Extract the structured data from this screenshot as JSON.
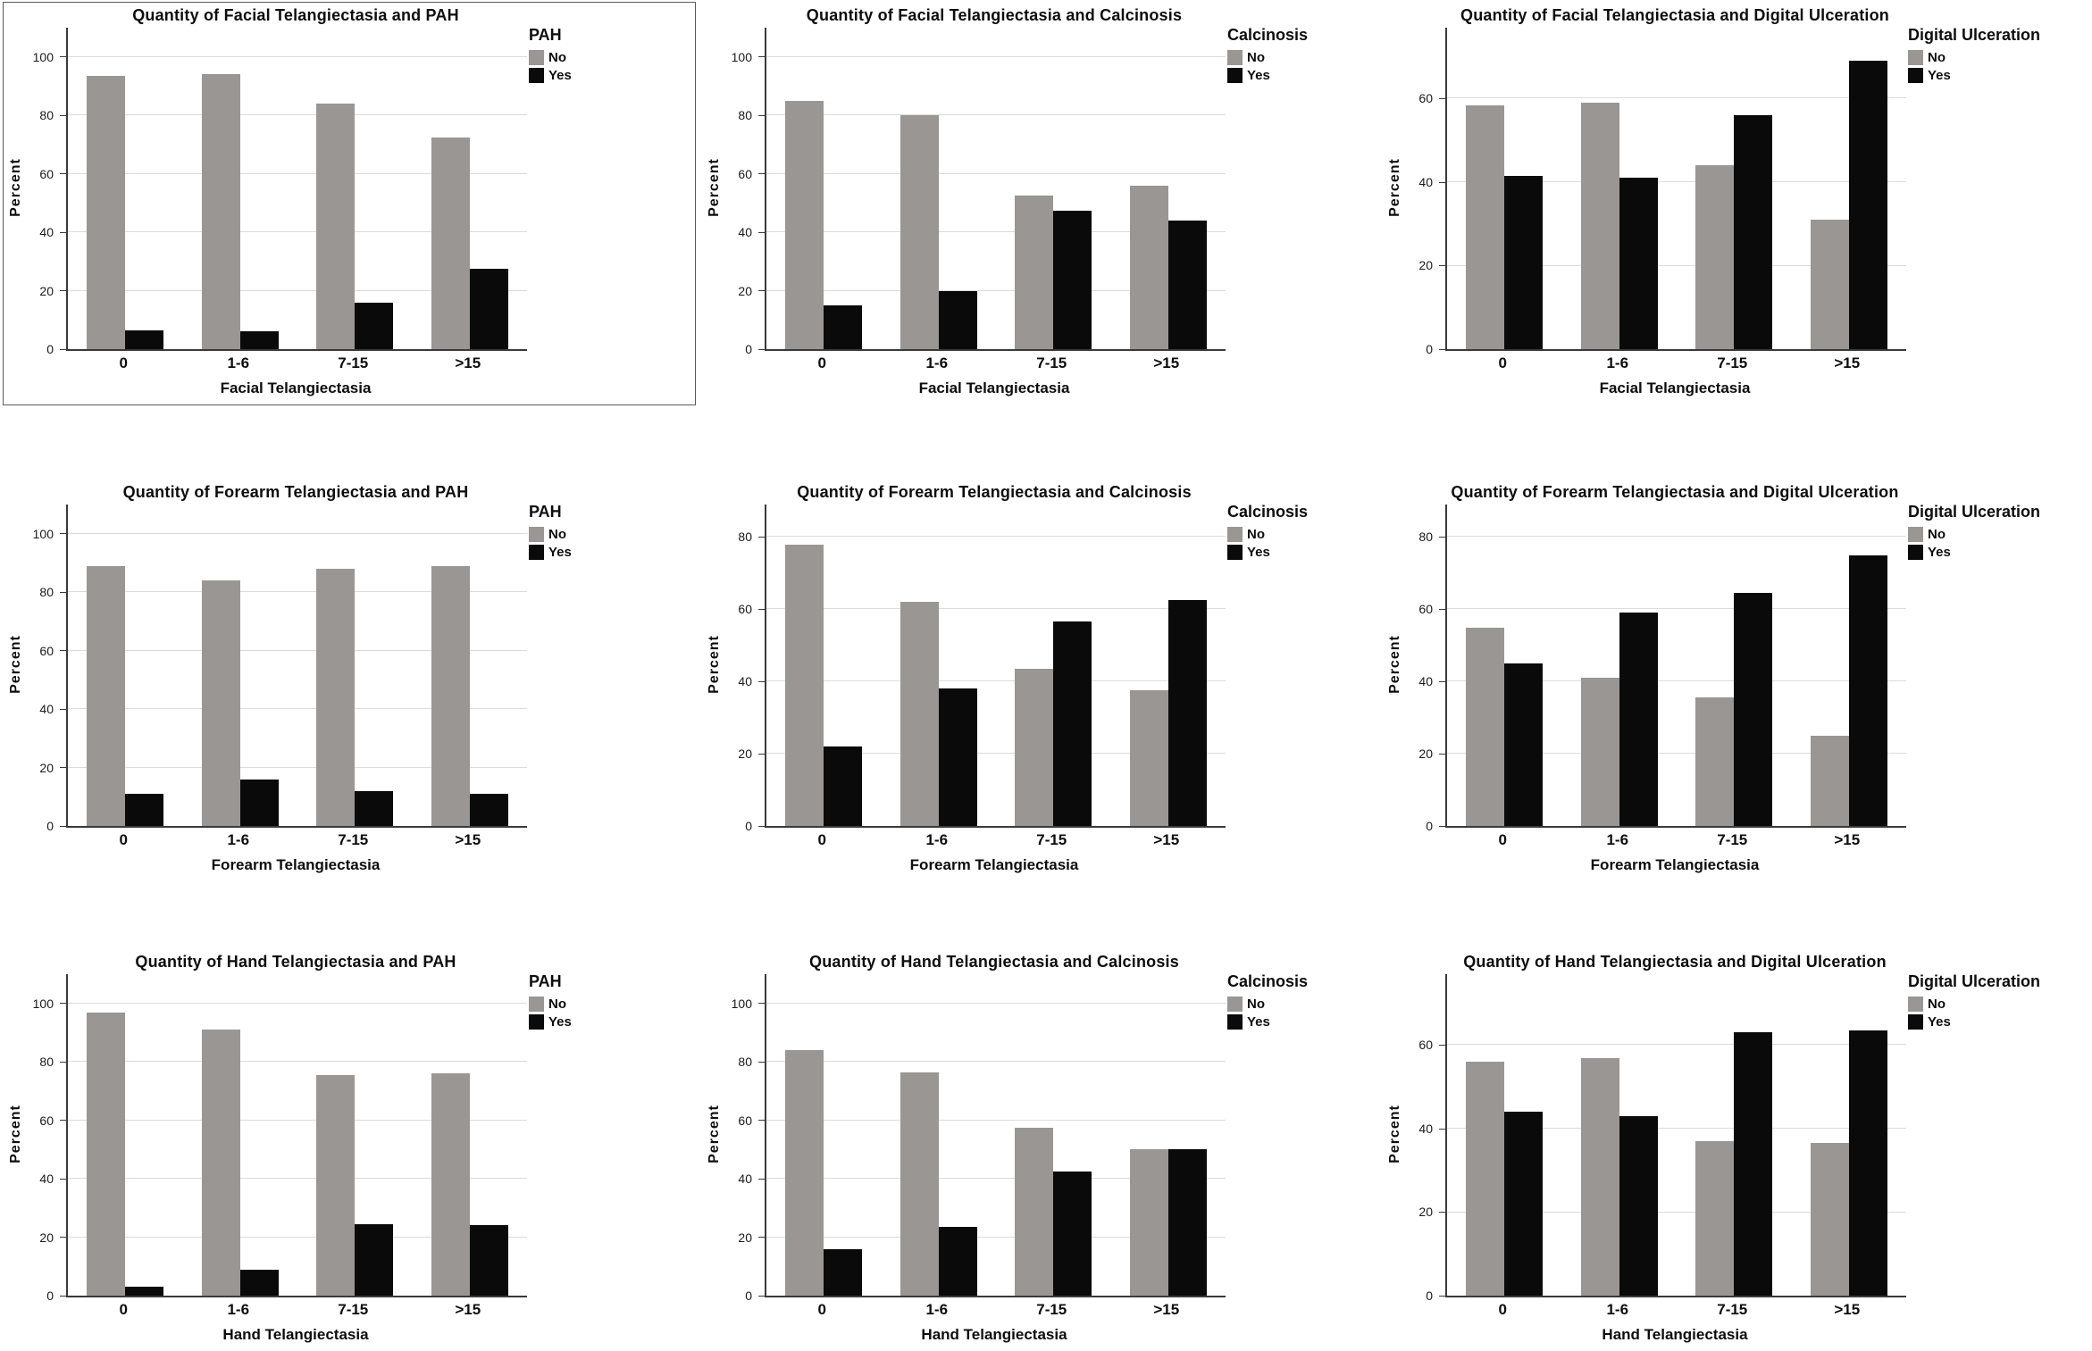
{
  "figure": {
    "ylabel_shared": "Percent",
    "categories_shared": [
      "0",
      "1-6",
      "7-15",
      ">15"
    ]
  },
  "colors": {
    "bar_no": "#9a9693",
    "bar_yes": "#0a0a0a",
    "gridline": "#dcdcdc",
    "axis": "#3a3a3a",
    "selection_frame": "#5a5a5a",
    "background": "#ffffff"
  },
  "chart_data": [
    {
      "type": "bar",
      "title": "Quantity of Facial Telangiectasia and PAH",
      "xlabel": "Facial Telangiectasia",
      "ylabel": "Percent",
      "legend_title": "PAH",
      "legend_position": "right",
      "grid": true,
      "framed": true,
      "categories": [
        "0",
        "1-6",
        "7-15",
        ">15"
      ],
      "yticks": [
        0,
        20,
        40,
        60,
        80,
        100
      ],
      "ylim": [
        0,
        110
      ],
      "series": [
        {
          "name": "No",
          "color": "#9a9693",
          "values": [
            93.5,
            94,
            84,
            72.5
          ]
        },
        {
          "name": "Yes",
          "color": "#0a0a0a",
          "values": [
            6.5,
            6,
            16,
            27.5
          ]
        }
      ]
    },
    {
      "type": "bar",
      "title": "Quantity of Facial Telangiectasia and Calcinosis",
      "xlabel": "Facial Telangiectasia",
      "ylabel": "Percent",
      "legend_title": "Calcinosis",
      "legend_position": "right",
      "grid": true,
      "framed": false,
      "categories": [
        "0",
        "1-6",
        "7-15",
        ">15"
      ],
      "yticks": [
        0,
        20,
        40,
        60,
        80,
        100
      ],
      "ylim": [
        0,
        110
      ],
      "series": [
        {
          "name": "No",
          "color": "#9a9693",
          "values": [
            85,
            80,
            52.5,
            56
          ]
        },
        {
          "name": "Yes",
          "color": "#0a0a0a",
          "values": [
            15,
            20,
            47.5,
            44
          ]
        }
      ]
    },
    {
      "type": "bar",
      "title": "Quantity of Facial Telangiectasia and Digital Ulceration",
      "xlabel": "Facial Telangiectasia",
      "ylabel": "Percent",
      "legend_title": "Digital Ulceration",
      "legend_position": "right",
      "grid": true,
      "framed": false,
      "categories": [
        "0",
        "1-6",
        "7-15",
        ">15"
      ],
      "yticks": [
        0,
        20,
        40,
        60
      ],
      "ylim": [
        0,
        77
      ],
      "series": [
        {
          "name": "No",
          "color": "#9a9693",
          "values": [
            58.5,
            59,
            44,
            31
          ]
        },
        {
          "name": "Yes",
          "color": "#0a0a0a",
          "values": [
            41.5,
            41,
            56,
            69
          ]
        }
      ]
    },
    {
      "type": "bar",
      "title": "Quantity of Forearm Telangiectasia and PAH",
      "xlabel": "Forearm Telangiectasia",
      "ylabel": "Percent",
      "legend_title": "PAH",
      "legend_position": "right",
      "grid": true,
      "framed": false,
      "categories": [
        "0",
        "1-6",
        "7-15",
        ">15"
      ],
      "yticks": [
        0,
        20,
        40,
        60,
        80,
        100
      ],
      "ylim": [
        0,
        110
      ],
      "series": [
        {
          "name": "No",
          "color": "#9a9693",
          "values": [
            89,
            84,
            88,
            89
          ]
        },
        {
          "name": "Yes",
          "color": "#0a0a0a",
          "values": [
            11,
            16,
            12,
            11
          ]
        }
      ]
    },
    {
      "type": "bar",
      "title": "Quantity of Forearm Telangiectasia and Calcinosis",
      "xlabel": "Forearm Telangiectasia",
      "ylabel": "Percent",
      "legend_title": "Calcinosis",
      "legend_position": "right",
      "grid": true,
      "framed": false,
      "categories": [
        "0",
        "1-6",
        "7-15",
        ">15"
      ],
      "yticks": [
        0,
        20,
        40,
        60,
        80
      ],
      "ylim": [
        0,
        89
      ],
      "series": [
        {
          "name": "No",
          "color": "#9a9693",
          "values": [
            78,
            62,
            43.5,
            37.5
          ]
        },
        {
          "name": "Yes",
          "color": "#0a0a0a",
          "values": [
            22,
            38,
            56.5,
            62.5
          ]
        }
      ]
    },
    {
      "type": "bar",
      "title": "Quantity of Forearm Telangiectasia and Digital Ulceration",
      "xlabel": "Forearm Telangiectasia",
      "ylabel": "Percent",
      "legend_title": "Digital Ulceration",
      "legend_position": "right",
      "grid": true,
      "framed": false,
      "categories": [
        "0",
        "1-6",
        "7-15",
        ">15"
      ],
      "yticks": [
        0,
        20,
        40,
        60,
        80
      ],
      "ylim": [
        0,
        89
      ],
      "series": [
        {
          "name": "No",
          "color": "#9a9693",
          "values": [
            55,
            41,
            35.5,
            25
          ]
        },
        {
          "name": "Yes",
          "color": "#0a0a0a",
          "values": [
            45,
            59,
            64.5,
            75
          ]
        }
      ]
    },
    {
      "type": "bar",
      "title": "Quantity of Hand Telangiectasia and PAH",
      "xlabel": "Hand Telangiectasia",
      "ylabel": "Percent",
      "legend_title": "PAH",
      "legend_position": "right",
      "grid": true,
      "framed": false,
      "categories": [
        "0",
        "1-6",
        "7-15",
        ">15"
      ],
      "yticks": [
        0,
        20,
        40,
        60,
        80,
        100
      ],
      "ylim": [
        0,
        110
      ],
      "series": [
        {
          "name": "No",
          "color": "#9a9693",
          "values": [
            97,
            91,
            75.5,
            76
          ]
        },
        {
          "name": "Yes",
          "color": "#0a0a0a",
          "values": [
            3,
            9,
            24.5,
            24
          ]
        }
      ]
    },
    {
      "type": "bar",
      "title": "Quantity of Hand Telangiectasia and Calcinosis",
      "xlabel": "Hand Telangiectasia",
      "ylabel": "Percent",
      "legend_title": "Calcinosis",
      "legend_position": "right",
      "grid": true,
      "framed": false,
      "categories": [
        "0",
        "1-6",
        "7-15",
        ">15"
      ],
      "yticks": [
        0,
        20,
        40,
        60,
        80,
        100
      ],
      "ylim": [
        0,
        110
      ],
      "series": [
        {
          "name": "No",
          "color": "#9a9693",
          "values": [
            84,
            76.5,
            57.5,
            50
          ]
        },
        {
          "name": "Yes",
          "color": "#0a0a0a",
          "values": [
            16,
            23.5,
            42.5,
            50
          ]
        }
      ]
    },
    {
      "type": "bar",
      "title": "Quantity of Hand Telangiectasia and Digital Ulceration",
      "xlabel": "Hand Telangiectasia",
      "ylabel": "Percent",
      "legend_title": "Digital Ulceration",
      "legend_position": "right",
      "grid": true,
      "framed": false,
      "categories": [
        "0",
        "1-6",
        "7-15",
        ">15"
      ],
      "yticks": [
        0,
        20,
        40,
        60
      ],
      "ylim": [
        0,
        77
      ],
      "series": [
        {
          "name": "No",
          "color": "#9a9693",
          "values": [
            56,
            57,
            37,
            36.5
          ]
        },
        {
          "name": "Yes",
          "color": "#0a0a0a",
          "values": [
            44,
            43,
            63,
            63.5
          ]
        }
      ]
    }
  ]
}
